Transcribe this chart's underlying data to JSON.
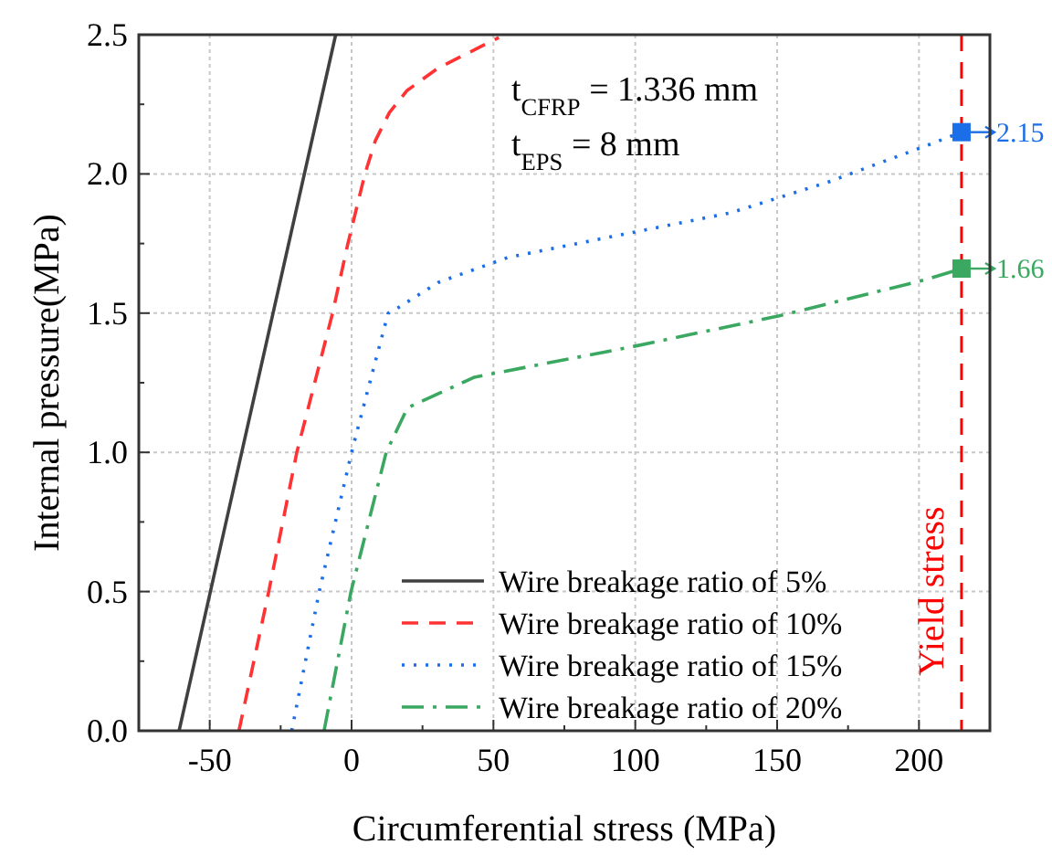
{
  "chart_data": {
    "type": "line",
    "xlabel": "Circumferential stress (MPa)",
    "ylabel": "Internal pressure(MPa)",
    "xlim": [
      -75,
      225
    ],
    "ylim": [
      0,
      2.5
    ],
    "xticks": [
      {
        "value": -75,
        "label": null
      },
      -50,
      {
        "value": -25,
        "label": null
      },
      0,
      {
        "value": 25,
        "label": null
      },
      50,
      {
        "value": 75,
        "label": null
      },
      100,
      {
        "value": 125,
        "label": null
      },
      150,
      {
        "value": 175,
        "label": null
      },
      200
    ],
    "yticks": [
      {
        "value": 0,
        "label": "0.0"
      },
      {
        "value": 0.25,
        "label": null
      },
      0.5,
      {
        "value": 0.75,
        "label": null
      },
      {
        "value": 1,
        "label": "1.0"
      },
      {
        "value": 1.25,
        "label": null
      },
      1.5,
      {
        "value": 1.75,
        "label": null
      },
      {
        "value": 2,
        "label": "2.0"
      },
      {
        "value": 2.25,
        "label": null
      },
      2.5
    ],
    "grid": true,
    "legend": "bottom right",
    "series": [
      {
        "name": "Wire breakage ratio of 5%",
        "color": "#404040",
        "line_style": "solid",
        "x": [
          -60.8,
          -5.6
        ],
        "values": [
          0,
          2.5
        ]
      },
      {
        "name": "Wire breakage ratio of 10%",
        "color": "#ff3333",
        "line_style": "dashed",
        "x": [
          -39.7,
          -29.2,
          -19.3,
          -6.7,
          -1.3,
          4.7,
          8.4,
          13.3,
          19.6,
          30.5,
          51.9
        ],
        "values": [
          0,
          0.5,
          1,
          1.5,
          1.75,
          2,
          2.12,
          2.22,
          2.3,
          2.38,
          2.49
        ]
      },
      {
        "name": "Wire breakage ratio of 15%",
        "color": "#1a6ee8",
        "line_style": "dotted",
        "x": [
          -21.1,
          -11.4,
          0,
          6.4,
          12.9,
          16.5,
          30.5,
          55.1,
          99.2,
          133.5,
          167.8,
          202.2,
          215
        ],
        "values": [
          0,
          0.5,
          1,
          1.25,
          1.5,
          1.52,
          1.61,
          1.7,
          1.79,
          1.86,
          1.97,
          2.1,
          2.15
        ]
      },
      {
        "name": "Wire breakage ratio of 20%",
        "color": "#3aa860",
        "line_style": "dashdot",
        "x": [
          -9.7,
          -0.2,
          12.2,
          19.7,
          43.3,
          99.2,
          150.7,
          202.2,
          215
        ],
        "values": [
          0,
          0.5,
          1,
          1.16,
          1.27,
          1.38,
          1.49,
          1.62,
          1.66
        ]
      },
      {
        "type": "scatter",
        "marker": "square",
        "color": "#1a6ee8",
        "x": [
          215
        ],
        "values": [
          2.15
        ],
        "value_labels": [
          "2.15"
        ]
      },
      {
        "type": "scatter",
        "marker": "square",
        "color": "#3aa860",
        "x": [
          215
        ],
        "values": [
          1.66
        ],
        "value_labels": [
          "1.66"
        ]
      }
    ],
    "ref_lines": [
      {
        "axis": "x",
        "value": 215,
        "label": "Yield stress",
        "color": "#ff0000",
        "line_style": "dashed"
      }
    ],
    "annotations": [
      "t$_{CFRP}$ = 1.336 mm",
      "t$_{EPS}$ = 8 mm"
    ]
  }
}
